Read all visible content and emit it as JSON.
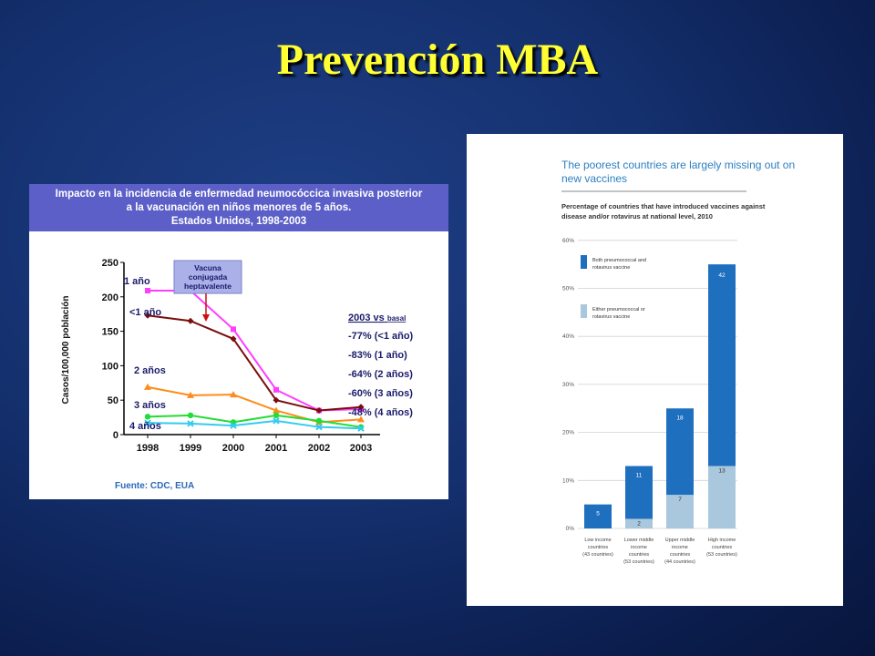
{
  "slide": {
    "title": "Prevención MBA"
  },
  "left_chart": {
    "header_lines": [
      "Impacto en la incidencia de enfermedad neumocóccica invasiva posterior",
      "a la vacunación en niños menores de 5 años.",
      "Estados Unidos, 1998-2003"
    ],
    "source": "Fuente: CDC, EUA",
    "vaccine_label": [
      "Vacuna",
      "conjugada",
      "heptavalente"
    ],
    "legend_title": "2003 vs",
    "legend_title_suffix": "basal",
    "legend_items": [
      "-77% (<1 año)",
      "-83% (1 año)",
      "-64% (2 años)",
      "-60% (3 años)",
      "-48% (4 años)"
    ]
  },
  "right_chart": {
    "title_lines": [
      "The poorest countries are largely missing out on",
      "new vaccines"
    ],
    "subtitle_lines": [
      "Percentage of countries that have introduced vaccines against",
      "disease and/or rotavirus at national level, 2010"
    ],
    "legend": [
      {
        "label_lines": [
          "Both pneumococcal and",
          "rotavirus vaccine"
        ],
        "color": "#1f6fbf"
      },
      {
        "label_lines": [
          "Either pneumococcal or",
          "rotavirus vaccine"
        ],
        "color": "#a9c7dd"
      }
    ]
  },
  "chart_data": [
    {
      "type": "line",
      "ylabel": "Casos/100,000 población",
      "xlabel": "",
      "x": [
        1998,
        1999,
        2000,
        2001,
        2002,
        2003
      ],
      "x_ticks": [
        "1998",
        "1999",
        "2000",
        "2001",
        "2002",
        "2003"
      ],
      "ylim": [
        0,
        250
      ],
      "y_ticks": [
        "0",
        "50",
        "100",
        "150",
        "200",
        "250"
      ],
      "series": [
        {
          "name": "1 año",
          "color": "#ff3dff",
          "marker": "square",
          "values": [
            209,
            209,
            153,
            65,
            35,
            37
          ]
        },
        {
          "name": "<1 año",
          "color": "#7a0d0d",
          "marker": "diamond",
          "values": [
            173,
            165,
            139,
            50,
            35,
            40
          ]
        },
        {
          "name": "2 años",
          "color": "#ff8c1a",
          "marker": "triangle",
          "values": [
            69,
            57,
            58,
            35,
            18,
            22
          ]
        },
        {
          "name": "3 años",
          "color": "#22dd33",
          "marker": "circle",
          "values": [
            26,
            28,
            18,
            28,
            20,
            11
          ]
        },
        {
          "name": "4 años",
          "color": "#33ccee",
          "marker": "x",
          "values": [
            17,
            16,
            13,
            20,
            11,
            9
          ]
        }
      ],
      "legend": "inline labels"
    },
    {
      "type": "bar",
      "stacked": true,
      "title": "The poorest countries are largely missing out on new vaccines",
      "ylim": [
        0,
        60
      ],
      "y_ticks": [
        "0%",
        "10%",
        "20%",
        "30%",
        "40%",
        "50%",
        "60%"
      ],
      "categories": [
        [
          "Low income",
          "countries",
          "(43 countries)"
        ],
        [
          "Lower middle",
          "income",
          "countries",
          "(53 countries)"
        ],
        [
          "Upper middle",
          "income",
          "countries",
          "(44 countries)"
        ],
        [
          "High income",
          "countries",
          "(53 countries)"
        ]
      ],
      "series": [
        {
          "name": "Either pneumococcal or rotavirus vaccine",
          "color": "#a9c7dd",
          "percent": [
            0,
            2,
            7,
            13
          ],
          "counts": [
            "",
            "2",
            "7",
            "13"
          ]
        },
        {
          "name": "Both pneumococcal and rotavirus vaccine",
          "color": "#1f6fbf",
          "percent": [
            5,
            11,
            18,
            42
          ],
          "counts": [
            "5",
            "11",
            "18",
            "42"
          ]
        }
      ]
    }
  ]
}
